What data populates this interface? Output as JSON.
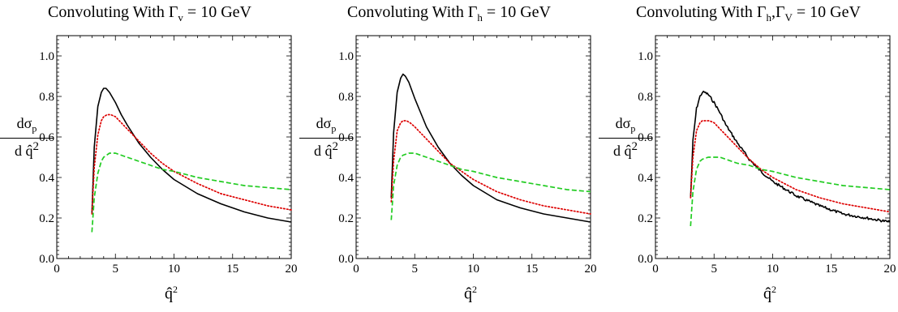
{
  "chart_data": [
    {
      "type": "line",
      "title_prefix": "Convoluting With Γ",
      "title_sub": "v",
      "title_suffix": " = 10 GeV",
      "ylabel_num": "dσ",
      "ylabel_num_sub": "p",
      "ylabel_den": "d q̂",
      "ylabel_den_sup": "2",
      "xlabel": "q̂",
      "xlabel_sup": "2",
      "xlim": [
        0,
        20
      ],
      "ylim": [
        0,
        1.1
      ],
      "xticks": [
        "0",
        "5",
        "10",
        "15",
        "20"
      ],
      "yticks": [
        "0.0",
        "0.2",
        "0.4",
        "0.6",
        "0.8",
        "1.0"
      ],
      "grid": false,
      "series": [
        {
          "style": "solid",
          "color": "#000000",
          "x": [
            3.0,
            3.2,
            3.5,
            3.8,
            4.0,
            4.2,
            4.5,
            5.0,
            5.5,
            6.0,
            7.0,
            8.0,
            9.0,
            10.0,
            12.0,
            14.0,
            16.0,
            18.0,
            20.0
          ],
          "y": [
            0.22,
            0.55,
            0.75,
            0.82,
            0.84,
            0.84,
            0.82,
            0.77,
            0.71,
            0.66,
            0.57,
            0.5,
            0.44,
            0.39,
            0.32,
            0.27,
            0.23,
            0.2,
            0.18
          ]
        },
        {
          "style": "dotted",
          "color": "#dd0000",
          "x": [
            3.0,
            3.2,
            3.5,
            3.8,
            4.0,
            4.3,
            4.6,
            5.0,
            5.5,
            6.0,
            7.0,
            8.0,
            9.0,
            10.0,
            12.0,
            14.0,
            16.0,
            18.0,
            20.0
          ],
          "y": [
            0.22,
            0.45,
            0.61,
            0.68,
            0.7,
            0.71,
            0.71,
            0.7,
            0.67,
            0.64,
            0.58,
            0.52,
            0.47,
            0.43,
            0.37,
            0.32,
            0.29,
            0.26,
            0.24
          ]
        },
        {
          "style": "dashed",
          "color": "#22cc22",
          "x": [
            3.0,
            3.2,
            3.5,
            3.8,
            4.0,
            4.5,
            5.0,
            5.5,
            6.0,
            7.0,
            8.0,
            9.0,
            10.0,
            12.0,
            14.0,
            16.0,
            18.0,
            20.0
          ],
          "y": [
            0.13,
            0.3,
            0.42,
            0.48,
            0.5,
            0.52,
            0.52,
            0.51,
            0.5,
            0.48,
            0.46,
            0.44,
            0.43,
            0.4,
            0.38,
            0.36,
            0.35,
            0.34
          ]
        }
      ]
    },
    {
      "type": "line",
      "title_prefix": "Convoluting With Γ",
      "title_sub": "h",
      "title_suffix": " = 10 GeV",
      "ylabel_num": "dσ",
      "ylabel_num_sub": "p",
      "ylabel_den": "d q̂",
      "ylabel_den_sup": "2",
      "xlabel": "q̂",
      "xlabel_sup": "2",
      "xlim": [
        0,
        20
      ],
      "ylim": [
        0,
        1.1
      ],
      "xticks": [
        "0",
        "5",
        "10",
        "15",
        "20"
      ],
      "yticks": [
        "0.0",
        "0.2",
        "0.4",
        "0.6",
        "0.8",
        "1.0"
      ],
      "grid": false,
      "series": [
        {
          "style": "solid",
          "color": "#000000",
          "x": [
            3.0,
            3.2,
            3.5,
            3.8,
            4.0,
            4.2,
            4.5,
            5.0,
            5.5,
            6.0,
            7.0,
            8.0,
            9.0,
            10.0,
            12.0,
            14.0,
            16.0,
            18.0,
            20.0
          ],
          "y": [
            0.3,
            0.62,
            0.82,
            0.89,
            0.91,
            0.9,
            0.87,
            0.79,
            0.72,
            0.65,
            0.55,
            0.47,
            0.41,
            0.36,
            0.29,
            0.25,
            0.22,
            0.2,
            0.18
          ]
        },
        {
          "style": "dotted",
          "color": "#dd0000",
          "x": [
            3.0,
            3.2,
            3.5,
            3.8,
            4.0,
            4.3,
            4.6,
            5.0,
            5.5,
            6.0,
            7.0,
            8.0,
            9.0,
            10.0,
            12.0,
            14.0,
            16.0,
            18.0,
            20.0
          ],
          "y": [
            0.28,
            0.48,
            0.63,
            0.67,
            0.68,
            0.68,
            0.67,
            0.65,
            0.62,
            0.59,
            0.53,
            0.47,
            0.43,
            0.39,
            0.33,
            0.29,
            0.26,
            0.24,
            0.22
          ]
        },
        {
          "style": "dashed",
          "color": "#22cc22",
          "x": [
            3.0,
            3.2,
            3.5,
            3.8,
            4.0,
            4.5,
            5.0,
            5.5,
            6.0,
            7.0,
            8.0,
            9.0,
            10.0,
            12.0,
            14.0,
            16.0,
            18.0,
            20.0
          ],
          "y": [
            0.19,
            0.36,
            0.46,
            0.5,
            0.51,
            0.52,
            0.52,
            0.51,
            0.5,
            0.48,
            0.46,
            0.44,
            0.43,
            0.4,
            0.38,
            0.36,
            0.34,
            0.33
          ]
        }
      ]
    },
    {
      "type": "line",
      "title_prefix": "Convoluting With Γ",
      "title_sub": "h",
      "title_mid": ",Γ",
      "title_sub2": "V",
      "title_suffix": " = 10 GeV",
      "ylabel_num": "dσ",
      "ylabel_num_sub": "p",
      "ylabel_den": "d q̂",
      "ylabel_den_sup": "2",
      "xlabel": "q̂",
      "xlabel_sup": "2",
      "xlim": [
        0,
        20
      ],
      "ylim": [
        0,
        1.1
      ],
      "xticks": [
        "0",
        "5",
        "10",
        "15",
        "20"
      ],
      "yticks": [
        "0.0",
        "0.2",
        "0.4",
        "0.6",
        "0.8",
        "1.0"
      ],
      "grid": false,
      "series": [
        {
          "style": "solid",
          "color": "#000000",
          "noisy": true,
          "x": [
            3.0,
            3.2,
            3.5,
            3.8,
            4.0,
            4.2,
            4.5,
            5.0,
            5.5,
            6.0,
            7.0,
            8.0,
            9.0,
            10.0,
            12.0,
            14.0,
            16.0,
            18.0,
            20.0
          ],
          "y": [
            0.3,
            0.58,
            0.74,
            0.8,
            0.82,
            0.82,
            0.81,
            0.77,
            0.72,
            0.66,
            0.57,
            0.49,
            0.43,
            0.38,
            0.31,
            0.26,
            0.22,
            0.2,
            0.18
          ]
        },
        {
          "style": "dotted",
          "color": "#dd0000",
          "x": [
            3.0,
            3.2,
            3.5,
            3.8,
            4.0,
            4.3,
            4.6,
            5.0,
            5.5,
            6.0,
            7.0,
            8.0,
            9.0,
            10.0,
            12.0,
            14.0,
            16.0,
            18.0,
            20.0
          ],
          "y": [
            0.3,
            0.5,
            0.63,
            0.67,
            0.68,
            0.68,
            0.68,
            0.67,
            0.64,
            0.61,
            0.55,
            0.49,
            0.44,
            0.4,
            0.34,
            0.3,
            0.27,
            0.25,
            0.23
          ]
        },
        {
          "style": "dashed",
          "color": "#22cc22",
          "x": [
            3.0,
            3.2,
            3.5,
            3.8,
            4.0,
            4.5,
            5.0,
            5.5,
            6.0,
            7.0,
            8.0,
            9.0,
            10.0,
            12.0,
            14.0,
            16.0,
            18.0,
            20.0
          ],
          "y": [
            0.16,
            0.33,
            0.44,
            0.48,
            0.49,
            0.5,
            0.5,
            0.5,
            0.49,
            0.47,
            0.46,
            0.44,
            0.43,
            0.4,
            0.38,
            0.36,
            0.35,
            0.34
          ]
        }
      ]
    }
  ]
}
